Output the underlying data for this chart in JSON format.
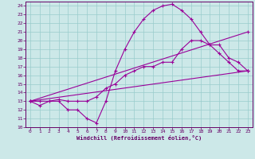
{
  "xlabel": "Windchill (Refroidissement éolien,°C)",
  "bg_color": "#cce8e8",
  "line_color": "#990099",
  "grid_color": "#99cccc",
  "axis_color": "#660066",
  "spine_color": "#660066",
  "ylim": [
    10,
    24.5
  ],
  "xlim": [
    -0.5,
    23.5
  ],
  "yticks": [
    10,
    11,
    12,
    13,
    14,
    15,
    16,
    17,
    18,
    19,
    20,
    21,
    22,
    23,
    24
  ],
  "xticks": [
    0,
    1,
    2,
    3,
    4,
    5,
    6,
    7,
    8,
    9,
    10,
    11,
    12,
    13,
    14,
    15,
    16,
    17,
    18,
    19,
    20,
    21,
    22,
    23
  ],
  "lines": [
    {
      "x": [
        0,
        1,
        2,
        3,
        4,
        5,
        6,
        7,
        8,
        9,
        10,
        11,
        12,
        13,
        14,
        15,
        16,
        17,
        18,
        19,
        20,
        21,
        22,
        23
      ],
      "y": [
        13,
        12.5,
        13,
        13,
        12,
        12,
        11,
        10.5,
        13,
        16.5,
        19,
        21,
        22.5,
        23.5,
        24,
        24.2,
        23.5,
        22.5,
        21,
        19.5,
        18.5,
        17.5,
        16.5,
        16.5
      ]
    },
    {
      "x": [
        0,
        1,
        2,
        3,
        4,
        5,
        6,
        7,
        8,
        9,
        10,
        11,
        12,
        13,
        14,
        15,
        16,
        17,
        18,
        19,
        20,
        21,
        22,
        23
      ],
      "y": [
        13,
        13,
        13,
        13.2,
        13,
        13,
        13,
        13.5,
        14.5,
        15,
        16,
        16.5,
        17,
        17,
        17.5,
        17.5,
        19,
        20,
        20,
        19.5,
        19.5,
        18,
        17.5,
        16.5
      ]
    },
    {
      "x": [
        0,
        23
      ],
      "y": [
        13,
        16.5
      ]
    },
    {
      "x": [
        0,
        23
      ],
      "y": [
        13,
        21
      ]
    }
  ]
}
